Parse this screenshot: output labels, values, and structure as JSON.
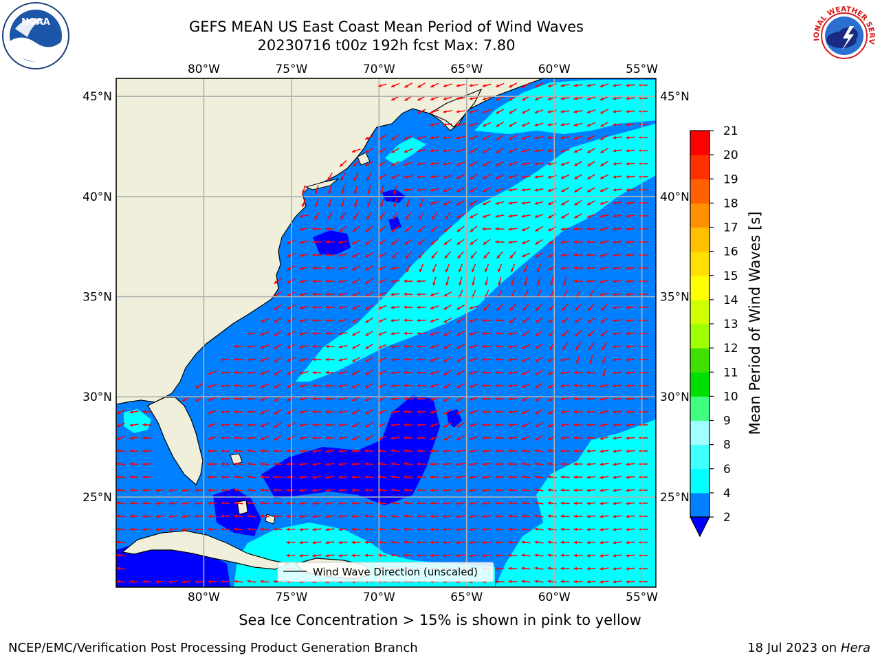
{
  "header": {
    "title_line1": "GEFS MEAN US East Coast Mean Period of Wind Waves",
    "title_line2": "20230716 t00z 192h fcst   Max: 7.80"
  },
  "logos": {
    "left": {
      "name": "noaa-logo",
      "text": "NOAA"
    },
    "right": {
      "name": "national-weather-service-logo",
      "text": "NATIONAL WEATHER SERVICE"
    }
  },
  "map": {
    "lon_range": [
      -85,
      -54.2
    ],
    "lat_range": [
      20.5,
      45.9
    ],
    "lon_ticks": [
      -80,
      -75,
      -70,
      -65,
      -60,
      -55
    ],
    "lat_ticks": [
      25,
      30,
      35,
      40,
      45
    ],
    "lon_labels": [
      "80°W",
      "75°W",
      "70°W",
      "65°W",
      "60°W",
      "55°W"
    ],
    "lat_labels": [
      "25°N",
      "30°N",
      "35°N",
      "40°N",
      "45°N"
    ],
    "grid": true,
    "land_color": "#efefdc",
    "vector_color": "#ff0000",
    "legend_label": "Wind Wave Direction (unscaled)",
    "field_regions": [
      {
        "period_band": "2-4",
        "color": "#0080ff"
      },
      {
        "period_band": "4-6",
        "color": "#00ffff"
      },
      {
        "period_band": "<2",
        "color": "#0000ff"
      }
    ]
  },
  "colorbar": {
    "label": "Mean Period of Wind Waves [s]",
    "ticks": [
      "2",
      "4",
      "6",
      "8",
      "9",
      "10",
      "11",
      "12",
      "13",
      "14",
      "15",
      "16",
      "17",
      "18",
      "19",
      "20",
      "21"
    ],
    "colors": [
      "#0080ff",
      "#00ffff",
      "#40ffff",
      "#a0ffff",
      "#40ff80",
      "#00e000",
      "#40e000",
      "#a0ff00",
      "#d0ff00",
      "#ffff00",
      "#ffe000",
      "#ffc000",
      "#ff9000",
      "#ff6000",
      "#ff3000",
      "#ff0000"
    ],
    "under_color": "#0000ff",
    "extend": "min"
  },
  "notes": {
    "sea_ice": "Sea Ice Concentration > 15% is shown in pink to yellow"
  },
  "footer": {
    "left": "NCEP/EMC/Verification Post Processing Product Generation Branch",
    "right_date": "18 Jul 2023 on",
    "right_host": "Hera"
  }
}
